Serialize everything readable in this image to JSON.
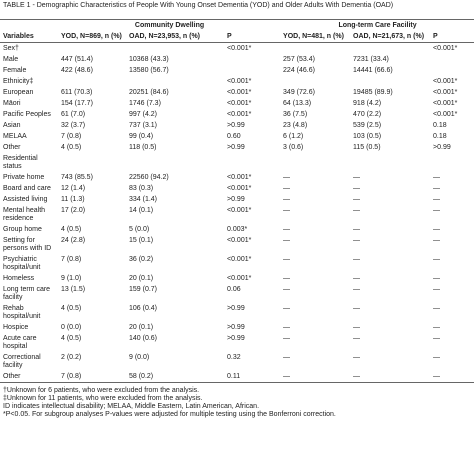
{
  "title": "TABLE 1 - Demographic Characteristics of People With Young Onset Dementia (YOD) and Older Adults With Dementia (OAD)",
  "header": {
    "groups": [
      "Community Dwelling",
      "Long-term Care Facility"
    ],
    "columns": [
      "Variables",
      "YOD, N=869, n (%)",
      "OAD, N=23,953, n (%)",
      "P",
      "YOD, N=481, n (%)",
      "OAD, N=21,673, n (%)",
      "P"
    ]
  },
  "table": {
    "rows": [
      [
        "Sex†",
        null,
        null,
        "<0.001*",
        null,
        null,
        "<0.001*"
      ],
      [
        "Male",
        "447 (51.4)",
        "10368 (43.3)",
        null,
        "257 (53.4)",
        "7231 (33.4)",
        null
      ],
      [
        "Female",
        "422 (48.6)",
        "13580 (56.7)",
        null,
        "224 (46.6)",
        "14441 (66.6)",
        null
      ],
      [
        "Ethnicity‡",
        null,
        null,
        "<0.001*",
        null,
        null,
        "<0.001*"
      ],
      [
        "European",
        "611 (70.3)",
        "20251 (84.6)",
        "<0.001*",
        "349 (72.6)",
        "19485 (89.9)",
        "<0.001*"
      ],
      [
        "Māori",
        "154 (17.7)",
        "1746 (7.3)",
        "<0.001*",
        "64 (13.3)",
        "918 (4.2)",
        "<0.001*"
      ],
      [
        "Pacific Peoples",
        "61 (7.0)",
        "997 (4.2)",
        "<0.001*",
        "36 (7.5)",
        "470 (2.2)",
        "<0.001*"
      ],
      [
        "Asian",
        "32 (3.7)",
        "737 (3.1)",
        ">0.99",
        "23 (4.8)",
        "539 (2.5)",
        "0.18"
      ],
      [
        "MELAA",
        "7 (0.8)",
        "99 (0.4)",
        "0.60",
        "6 (1.2)",
        "103 (0.5)",
        "0.18"
      ],
      [
        "Other",
        "4 (0.5)",
        "118 (0.5)",
        ">0.99",
        "3 (0.6)",
        "115 (0.5)",
        ">0.99"
      ],
      [
        "Residential status",
        null,
        null,
        null,
        null,
        null,
        null
      ],
      [
        "Private home",
        "743 (85.5)",
        "22560 (94.2)",
        "<0.001*",
        "—",
        "—",
        "—"
      ],
      [
        "Board and care",
        "12 (1.4)",
        "83 (0.3)",
        "<0.001*",
        "—",
        "—",
        "—"
      ],
      [
        "Assisted living",
        "11 (1.3)",
        "334 (1.4)",
        ">0.99",
        "—",
        "—",
        "—"
      ],
      [
        "Mental health residence",
        "17 (2.0)",
        "14 (0.1)",
        "<0.001*",
        "—",
        "—",
        "—"
      ],
      [
        "Group home",
        "4 (0.5)",
        "5 (0.0)",
        "0.003*",
        "—",
        "—",
        "—"
      ],
      [
        "Setting for persons with ID",
        "24 (2.8)",
        "15 (0.1)",
        "<0.001*",
        "—",
        "—",
        "—"
      ],
      [
        "Psychiatric hospital/unit",
        "7 (0.8)",
        "36 (0.2)",
        "<0.001*",
        "—",
        "—",
        "—"
      ],
      [
        "Homeless",
        "9 (1.0)",
        "20 (0.1)",
        "<0.001*",
        "—",
        "—",
        "—"
      ],
      [
        "Long term care facility",
        "13 (1.5)",
        "159 (0.7)",
        "0.06",
        "—",
        "—",
        "—"
      ],
      [
        "Rehab hospital/unit",
        "4 (0.5)",
        "106 (0.4)",
        ">0.99",
        "—",
        "—",
        "—"
      ],
      [
        "Hospice",
        "0 (0.0)",
        "20 (0.1)",
        ">0.99",
        "—",
        "—",
        "—"
      ],
      [
        "Acute care hospital",
        "4 (0.5)",
        "140 (0.6)",
        ">0.99",
        "—",
        "—",
        "—"
      ],
      [
        "Correctional facility",
        "2 (0.2)",
        "9 (0.0)",
        "0.32",
        "—",
        "—",
        "—"
      ],
      [
        "Other",
        "7 (0.8)",
        "58 (0.2)",
        "0.11",
        "—",
        "—",
        "—"
      ]
    ]
  },
  "footnotes": [
    "†Unknown for 6 patients, who were excluded from the analysis.",
    "‡Unknown for 11 patients, who were excluded from the analysis.",
    "ID indicates intellectual disability; MELAA, Middle Eastern, Latin American, African.",
    "*P<0.05. For subgroup analyses P-values were adjusted for multiple testing using the Bonferroni correction."
  ]
}
